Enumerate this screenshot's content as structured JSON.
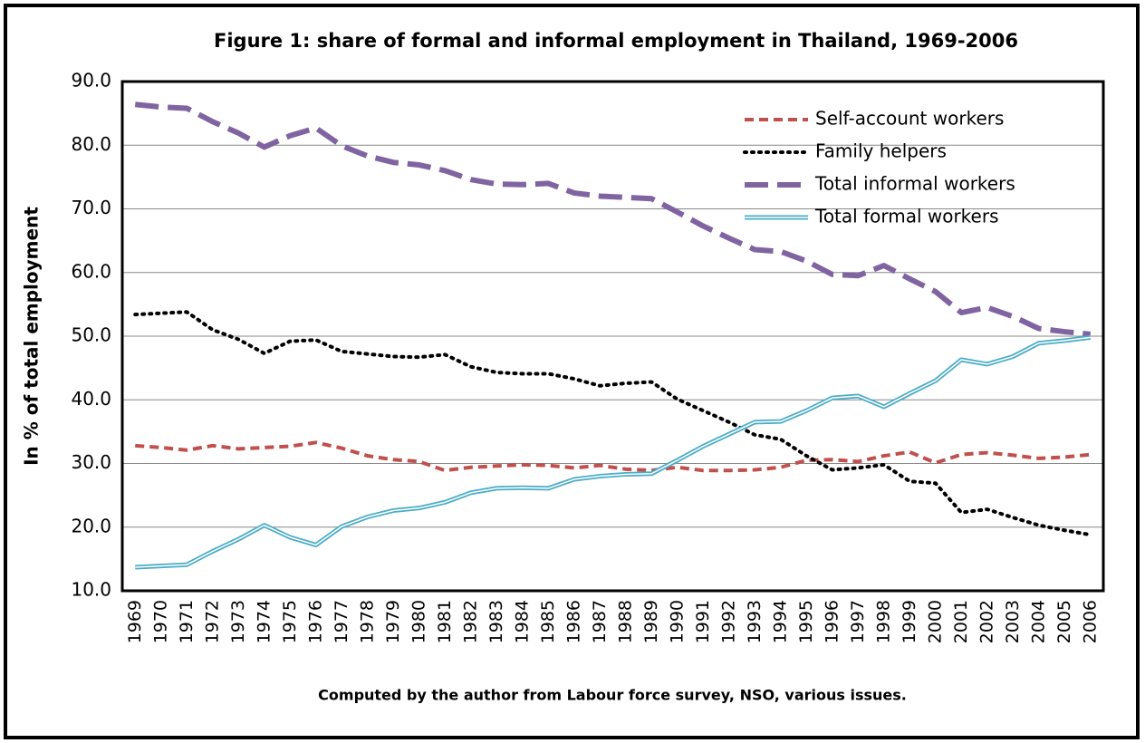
{
  "chart_data": {
    "type": "line",
    "title": "Figure 1: share of formal and informal employment in Thailand, 1969-2006",
    "y_label": "In % of total employment",
    "annotation": "Computed by the author from Labour force survey, NSO, various issues.",
    "categories": [
      "1969",
      "1970",
      "1971",
      "1972",
      "1973",
      "1974",
      "1975",
      "1976",
      "1977",
      "1978",
      "1979",
      "1980",
      "1981",
      "1982",
      "1983",
      "1984",
      "1985",
      "1986",
      "1987",
      "1988",
      "1989",
      "1990",
      "1991",
      "1992",
      "1993",
      "1994",
      "1995",
      "1996",
      "1997",
      "1998",
      "1999",
      "2000",
      "2001",
      "2002",
      "2003",
      "2004",
      "2005",
      "2006"
    ],
    "series": [
      {
        "name": "Self-account workers",
        "color": "#c0504d",
        "line_style": "dashed",
        "values": [
          32.8,
          32.5,
          32.1,
          32.8,
          32.3,
          32.5,
          32.7,
          33.3,
          32.4,
          31.2,
          30.6,
          30.3,
          28.9,
          29.4,
          29.6,
          29.8,
          29.7,
          29.3,
          29.7,
          29.1,
          28.9,
          29.4,
          28.9,
          28.9,
          29.0,
          29.4,
          30.5,
          30.6,
          30.3,
          31.2,
          31.8,
          30.1,
          31.4,
          31.7,
          31.3,
          30.8,
          31.0,
          31.4
        ]
      },
      {
        "name": "Family helpers",
        "color": "#000000",
        "line_style": "dotted",
        "values": [
          53.4,
          53.6,
          53.8,
          51.0,
          49.5,
          47.3,
          49.2,
          49.4,
          47.6,
          47.2,
          46.8,
          46.7,
          47.1,
          45.2,
          44.3,
          44.1,
          44.1,
          43.3,
          42.2,
          42.6,
          42.8,
          40.1,
          38.3,
          36.5,
          34.5,
          33.8,
          31.2,
          29.0,
          29.3,
          29.8,
          27.2,
          26.9,
          22.3,
          22.8,
          21.5,
          20.3,
          19.5,
          18.8
        ]
      },
      {
        "name": "Total informal workers",
        "color": "#8064a2",
        "line_style": "long-dashed",
        "values": [
          86.4,
          86.0,
          85.8,
          83.7,
          81.9,
          79.7,
          81.5,
          82.7,
          79.9,
          78.3,
          77.3,
          76.9,
          76.0,
          74.6,
          73.9,
          73.8,
          74.0,
          72.5,
          72.0,
          71.8,
          71.6,
          69.5,
          67.3,
          65.4,
          63.6,
          63.3,
          61.8,
          59.7,
          59.5,
          61.1,
          59.0,
          57.0,
          53.7,
          54.5,
          53.1,
          51.2,
          50.7,
          50.3
        ]
      },
      {
        "name": "Total formal workers",
        "color": "#4bacc6",
        "line_style": "double",
        "values": [
          13.7,
          13.9,
          14.1,
          16.2,
          18.1,
          20.3,
          18.4,
          17.2,
          20.1,
          21.6,
          22.6,
          23.0,
          23.9,
          25.4,
          26.1,
          26.2,
          26.1,
          27.5,
          28.0,
          28.3,
          28.4,
          30.5,
          32.7,
          34.6,
          36.5,
          36.6,
          38.3,
          40.3,
          40.6,
          38.9,
          41.0,
          43.0,
          46.3,
          45.6,
          46.8,
          48.9,
          49.3,
          49.8
        ]
      }
    ],
    "ylim": [
      10,
      90
    ],
    "yticks": [
      {
        "value": 10,
        "label": "10.0"
      },
      {
        "value": 20,
        "label": "20.0"
      },
      {
        "value": 30,
        "label": "30.0"
      },
      {
        "value": 40,
        "label": "40.0"
      },
      {
        "value": 50,
        "label": "50.0"
      },
      {
        "value": 60,
        "label": "60.0"
      },
      {
        "value": 70,
        "label": "70.0"
      },
      {
        "value": 80,
        "label": "80.0"
      },
      {
        "value": 90,
        "label": "90.0"
      }
    ],
    "grid": true,
    "legend": "upper right"
  }
}
